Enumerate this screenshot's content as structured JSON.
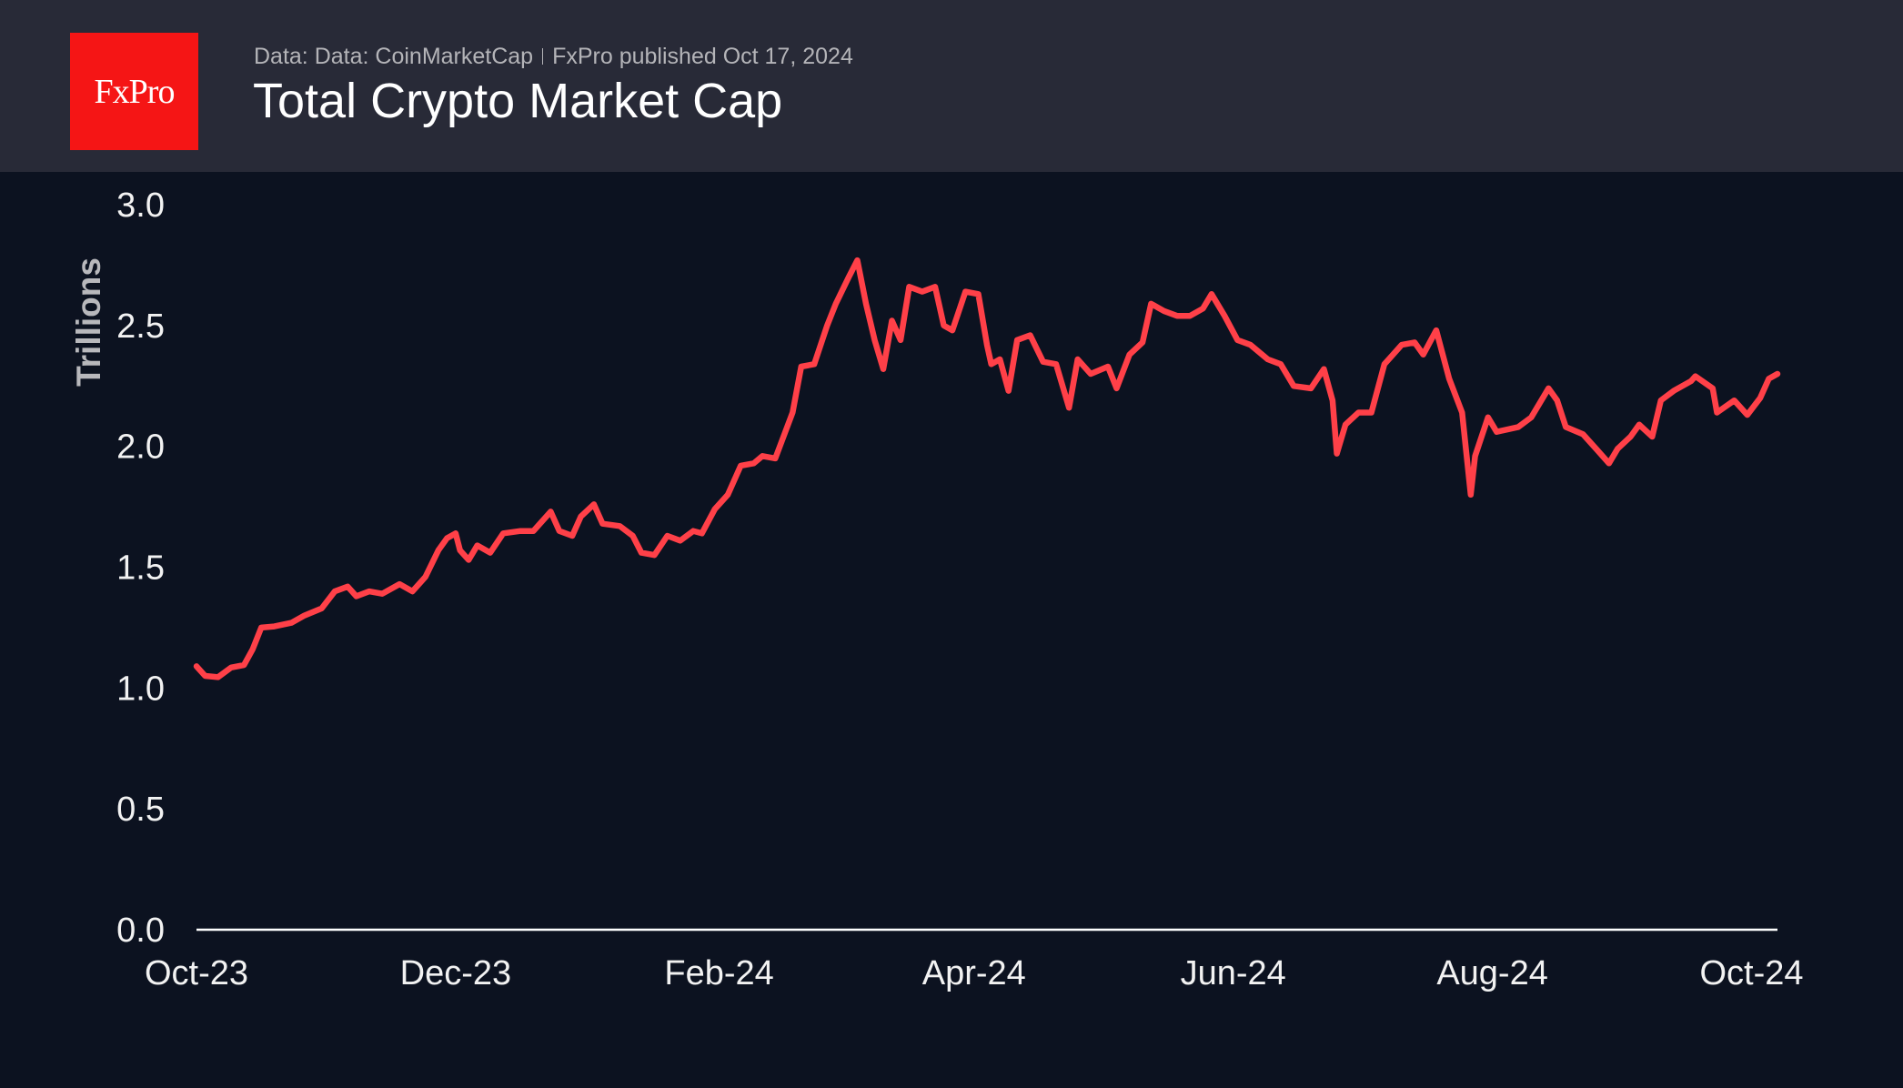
{
  "header": {
    "logo_text": "FxPro",
    "subtitle_source": "Data: Data: CoinMarketCap",
    "subtitle_published": "FxPro published Oct 17, 2024",
    "title": "Total Crypto Market Cap"
  },
  "colors": {
    "line": "#ff4048",
    "background": "#0c1220",
    "header": "#282a37",
    "logo": "#f51515"
  },
  "chart_data": {
    "type": "line",
    "title": "Total Crypto Market Cap",
    "ylabel": "Trillions",
    "xlabel": "",
    "ylim": [
      0,
      3
    ],
    "xlim": [
      "2023-10-17",
      "2024-10-17"
    ],
    "grid": false,
    "yticks": [
      {
        "value": 0,
        "label": "0.0"
      },
      {
        "value": 0.5,
        "label": "0.5"
      },
      {
        "value": 1,
        "label": "1.0"
      },
      {
        "value": 1.5,
        "label": "1.5"
      },
      {
        "value": 2,
        "label": "2.0"
      },
      {
        "value": 2.5,
        "label": "2.5"
      },
      {
        "value": 3,
        "label": "3.0"
      }
    ],
    "xticks": [
      {
        "date": "2023-10-17",
        "label": "Oct-23"
      },
      {
        "date": "2023-12-16",
        "label": "Dec-23"
      },
      {
        "date": "2024-02-15",
        "label": "Feb-24"
      },
      {
        "date": "2024-04-14",
        "label": "Apr-24"
      },
      {
        "date": "2024-06-13",
        "label": "Jun-24"
      },
      {
        "date": "2024-08-12",
        "label": "Aug-24"
      },
      {
        "date": "2024-10-11",
        "label": "Oct-24"
      }
    ],
    "series": [
      {
        "x": [
          "2023-10-17",
          "2023-10-19",
          "2023-10-22",
          "2023-10-25",
          "2023-10-28",
          "2023-10-30",
          "2023-11-01",
          "2023-11-04",
          "2023-11-08",
          "2023-11-11",
          "2023-11-15",
          "2023-11-18",
          "2023-11-21",
          "2023-11-23",
          "2023-11-26",
          "2023-11-29",
          "2023-12-03",
          "2023-12-06",
          "2023-12-09",
          "2023-12-12",
          "2023-12-14",
          "2023-12-16",
          "2023-12-17",
          "2023-12-19",
          "2023-12-21",
          "2023-12-24",
          "2023-12-27",
          "2023-12-31",
          "2024-01-03",
          "2024-01-07",
          "2024-01-09",
          "2024-01-12",
          "2024-01-14",
          "2024-01-17",
          "2024-01-19",
          "2024-01-23",
          "2024-01-26",
          "2024-01-28",
          "2024-01-31",
          "2024-02-03",
          "2024-02-06",
          "2024-02-09",
          "2024-02-11",
          "2024-02-14",
          "2024-02-17",
          "2024-02-20",
          "2024-02-23",
          "2024-02-25",
          "2024-02-28",
          "2024-03-03",
          "2024-03-05",
          "2024-03-08",
          "2024-03-11",
          "2024-03-13",
          "2024-03-16",
          "2024-03-18",
          "2024-03-20",
          "2024-03-22",
          "2024-03-24",
          "2024-03-26",
          "2024-03-28",
          "2024-03-30",
          "2024-04-02",
          "2024-04-05",
          "2024-04-07",
          "2024-04-09",
          "2024-04-12",
          "2024-04-15",
          "2024-04-17",
          "2024-04-18",
          "2024-04-20",
          "2024-04-22",
          "2024-04-24",
          "2024-04-27",
          "2024-04-30",
          "2024-05-03",
          "2024-05-06",
          "2024-05-08",
          "2024-05-11",
          "2024-05-15",
          "2024-05-17",
          "2024-05-20",
          "2024-05-23",
          "2024-05-25",
          "2024-05-28",
          "2024-05-31",
          "2024-06-03",
          "2024-06-06",
          "2024-06-08",
          "2024-06-11",
          "2024-06-14",
          "2024-06-17",
          "2024-06-21",
          "2024-06-24",
          "2024-06-27",
          "2024-07-01",
          "2024-07-04",
          "2024-07-06",
          "2024-07-07",
          "2024-07-09",
          "2024-07-12",
          "2024-07-15",
          "2024-07-18",
          "2024-07-22",
          "2024-07-25",
          "2024-07-27",
          "2024-07-30",
          "2024-08-02",
          "2024-08-05",
          "2024-08-07",
          "2024-08-08",
          "2024-08-11",
          "2024-08-13",
          "2024-08-18",
          "2024-08-21",
          "2024-08-25",
          "2024-08-27",
          "2024-08-29",
          "2024-09-02",
          "2024-09-05",
          "2024-09-08",
          "2024-09-10",
          "2024-09-13",
          "2024-09-15",
          "2024-09-18",
          "2024-09-20",
          "2024-09-23",
          "2024-09-27",
          "2024-09-28",
          "2024-10-02",
          "2024-10-03",
          "2024-10-07",
          "2024-10-10",
          "2024-10-13",
          "2024-10-15",
          "2024-10-17"
        ],
        "values": [
          1.09,
          1.05,
          1.045,
          1.085,
          1.095,
          1.16,
          1.25,
          1.255,
          1.27,
          1.3,
          1.33,
          1.4,
          1.42,
          1.38,
          1.4,
          1.39,
          1.43,
          1.4,
          1.46,
          1.57,
          1.62,
          1.64,
          1.57,
          1.53,
          1.59,
          1.56,
          1.64,
          1.65,
          1.65,
          1.73,
          1.65,
          1.63,
          1.71,
          1.76,
          1.68,
          1.67,
          1.63,
          1.56,
          1.55,
          1.63,
          1.61,
          1.65,
          1.64,
          1.74,
          1.8,
          1.92,
          1.93,
          1.96,
          1.95,
          2.14,
          2.33,
          2.34,
          2.5,
          2.59,
          2.7,
          2.77,
          2.59,
          2.44,
          2.32,
          2.52,
          2.44,
          2.66,
          2.64,
          2.66,
          2.5,
          2.48,
          2.64,
          2.63,
          2.42,
          2.34,
          2.36,
          2.23,
          2.44,
          2.46,
          2.35,
          2.34,
          2.16,
          2.36,
          2.3,
          2.33,
          2.24,
          2.38,
          2.43,
          2.59,
          2.56,
          2.54,
          2.54,
          2.57,
          2.63,
          2.54,
          2.44,
          2.42,
          2.36,
          2.34,
          2.25,
          2.24,
          2.32,
          2.19,
          1.97,
          2.09,
          2.14,
          2.14,
          2.34,
          2.42,
          2.43,
          2.38,
          2.48,
          2.28,
          2.14,
          1.8,
          1.96,
          2.12,
          2.06,
          2.08,
          2.12,
          2.24,
          2.19,
          2.08,
          2.05,
          1.99,
          1.93,
          1.99,
          2.04,
          2.09,
          2.04,
          2.19,
          2.23,
          2.27,
          2.29,
          2.24,
          2.14,
          2.19,
          2.13,
          2.2,
          2.28,
          2.3
        ]
      }
    ]
  }
}
